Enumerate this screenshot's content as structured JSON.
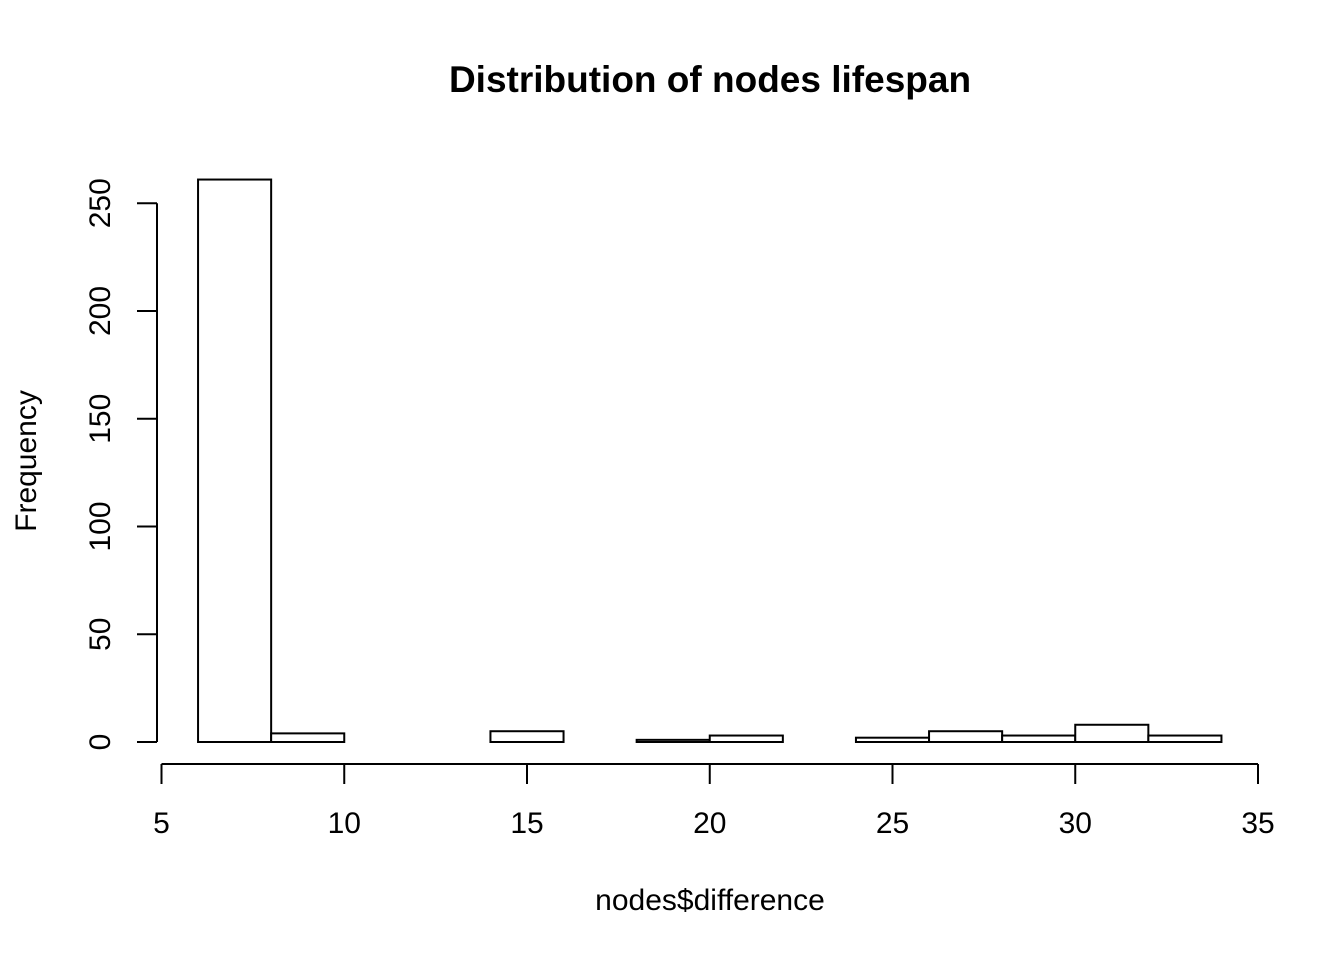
{
  "chart_data": {
    "type": "bar",
    "title": "Distribution of nodes lifespan",
    "xlabel": "nodes$difference",
    "ylabel": "Frequency",
    "bin_edges": [
      6,
      8,
      10,
      12,
      14,
      16,
      18,
      20,
      22,
      24,
      26,
      28,
      30,
      32,
      34
    ],
    "values": [
      261,
      4,
      0,
      0,
      5,
      0,
      1,
      3,
      0,
      2,
      5,
      3,
      8,
      3
    ],
    "xlim": [
      5,
      35
    ],
    "ylim": [
      0,
      261
    ],
    "x_ticks": [
      "5",
      "10",
      "15",
      "20",
      "25",
      "30",
      "35"
    ],
    "y_ticks": [
      "0",
      "50",
      "100",
      "150",
      "200",
      "250"
    ],
    "grid": false,
    "legend": "none",
    "colors": {
      "bar_fill": "#ffffff",
      "bar_stroke": "#000000"
    }
  }
}
